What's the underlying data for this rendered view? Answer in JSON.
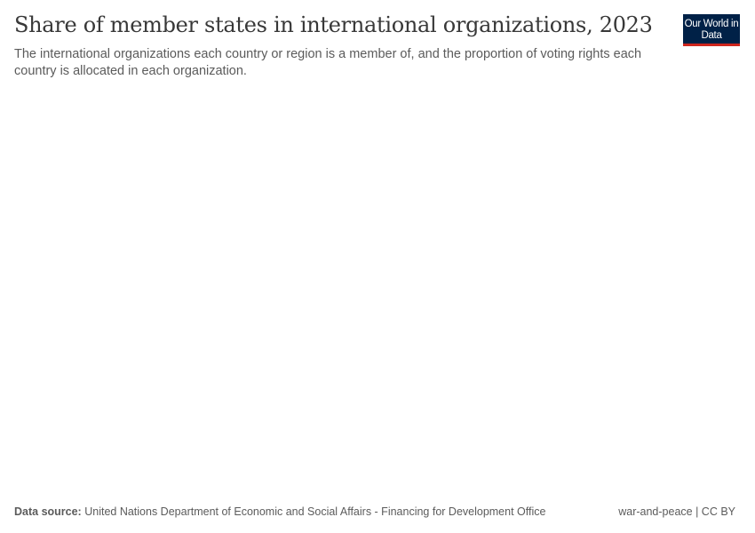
{
  "header": {
    "title": "Share of member states in international organizations, 2023",
    "subtitle": "The international organizations each country or region is a member of, and the proportion of voting rights each country is allocated in each organization.",
    "logo_text": "Our World in Data"
  },
  "footer": {
    "source_label": "Data source:",
    "source_text": "United Nations Department of Economic and Social Affairs - Financing for Development Office",
    "license": "war-and-peace | CC BY"
  },
  "colors": {
    "logo_bg": "#002147",
    "logo_accent": "#ce261e"
  },
  "chart_data": {
    "title": "Share of member states in international organizations, 2023",
    "subtitle": "The international organizations each country or region is a member of, and the proportion of voting rights each country is allocated in each organization.",
    "series": []
  }
}
